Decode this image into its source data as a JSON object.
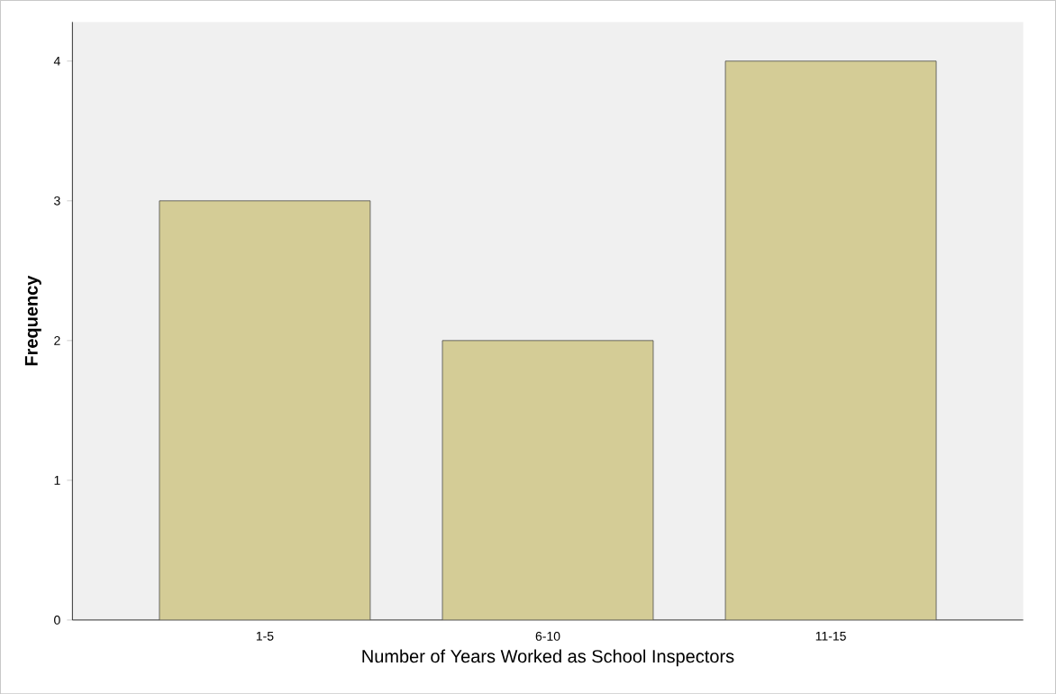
{
  "chart_data": {
    "type": "bar",
    "xlabel": "Number of Years Worked as School Inspectors",
    "ylabel": "Frequency",
    "categories": [
      "1-5",
      "6-10",
      "11-15"
    ],
    "values": [
      3,
      2,
      4
    ],
    "color": "#d4cc96",
    "ylim": [
      0,
      4.28
    ],
    "yticks": [
      0,
      1,
      2,
      3,
      4
    ],
    "grid": false
  }
}
